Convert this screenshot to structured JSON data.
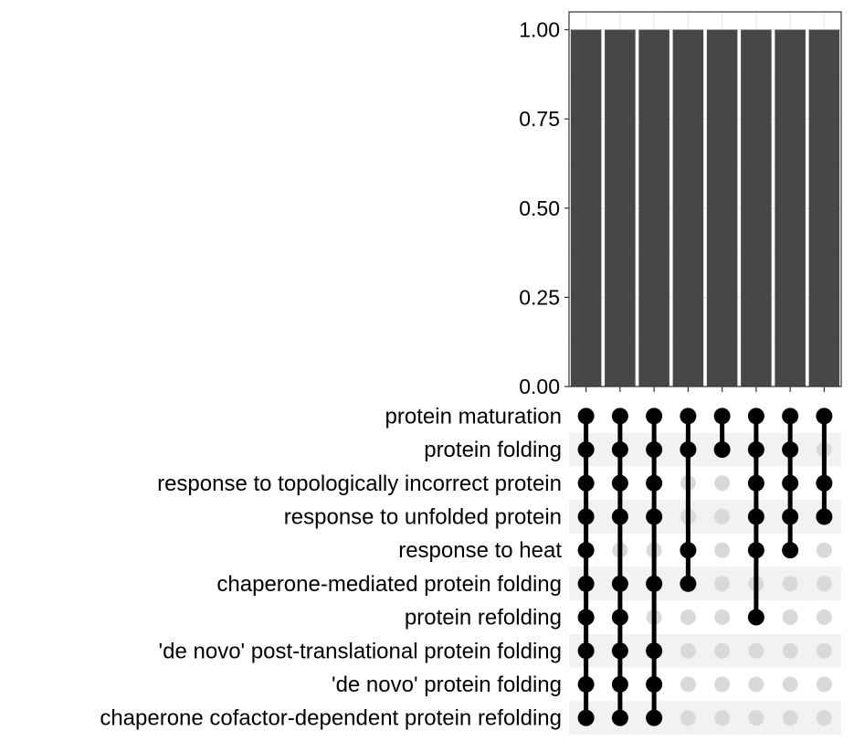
{
  "chart_data": {
    "type": "upset",
    "bar_panel": {
      "type": "bar",
      "y_ticks": [
        "0.00",
        "0.25",
        "0.50",
        "0.75",
        "1.00"
      ],
      "y_tick_values": [
        0,
        0.25,
        0.5,
        0.75,
        1
      ],
      "ylim": [
        0,
        1.05
      ],
      "values": [
        1,
        1,
        1,
        1,
        1,
        1,
        1,
        1
      ],
      "grid": true
    },
    "sets": [
      "protein maturation",
      "protein folding",
      "response to topologically incorrect protein",
      "response to unfolded protein",
      "response to heat",
      "chaperone-mediated protein folding",
      "protein refolding",
      "'de novo' post-translational protein folding",
      "'de novo' protein folding",
      "chaperone cofactor-dependent protein refolding"
    ],
    "intersections": [
      [
        0,
        1,
        2,
        3,
        4,
        5,
        6,
        7,
        8,
        9
      ],
      [
        0,
        1,
        2,
        3,
        5,
        6,
        7,
        8,
        9
      ],
      [
        0,
        1,
        2,
        3,
        5,
        7,
        8,
        9
      ],
      [
        0,
        1,
        4,
        5
      ],
      [
        0,
        1
      ],
      [
        0,
        1,
        2,
        3,
        4,
        6
      ],
      [
        0,
        1,
        2,
        3,
        4
      ],
      [
        0,
        2,
        3
      ]
    ],
    "colors": {
      "bar": "#474747",
      "panel_bg": "#ffffff",
      "panel_border": "#333333",
      "grid": "#ebebeb",
      "dot_active": "#000000",
      "dot_inactive": "#d9d9d9",
      "stripe": "#f2f2f2",
      "text": "#000000"
    }
  }
}
